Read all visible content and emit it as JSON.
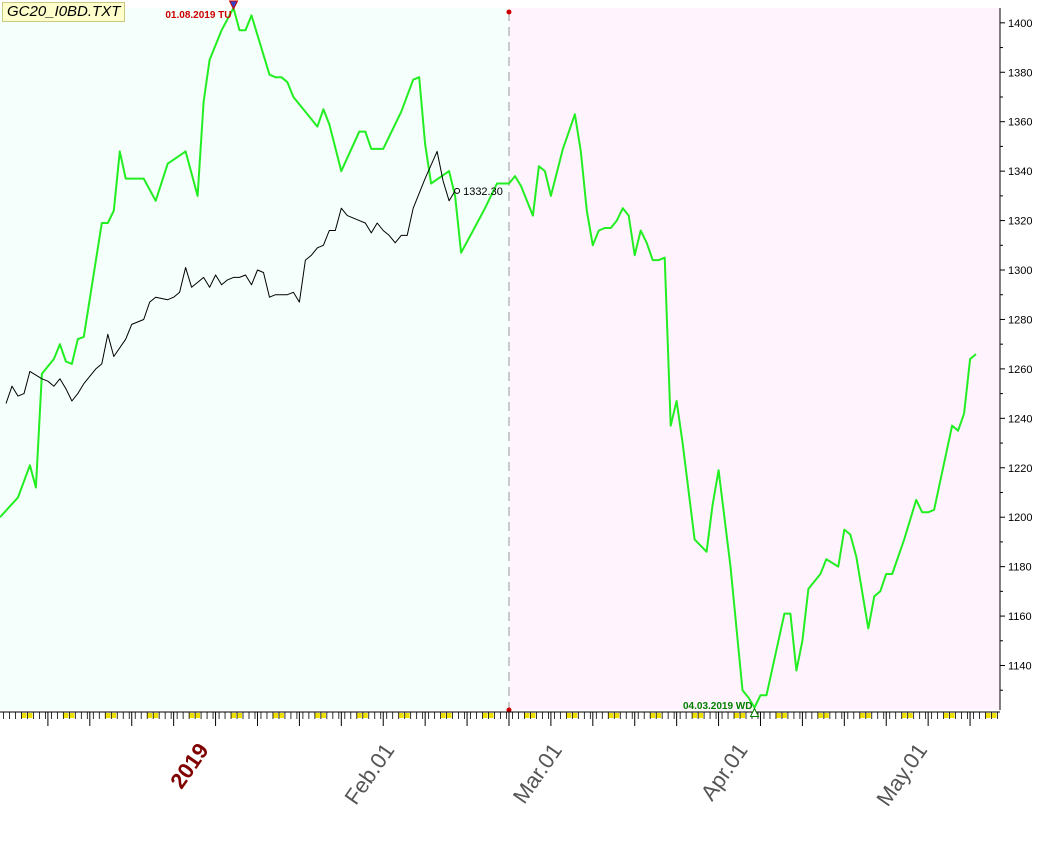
{
  "ticker": "GC20_I0BD.TXT",
  "colors": {
    "past_bg": "#f5fffb",
    "future_bg": "#fff3fd",
    "forecast_line": "#22ee22",
    "price_line": "#000000",
    "high_label": "#cc0000",
    "low_label": "#008000",
    "axis_tick_yellow": "#f0e000"
  },
  "annotations": {
    "high_label": "01.08.2019 TU",
    "low_label": "04.03.2019 WD",
    "last_price_label": "1332.30"
  },
  "chart_data": {
    "type": "line",
    "title": "",
    "x_tick_labels": [
      "2019",
      "Feb.01",
      "Mar.01",
      "Apr.01",
      "May.01"
    ],
    "y_tick_labels": [
      "1400",
      "1380",
      "1360",
      "1340",
      "1320",
      "1300",
      "1280",
      "1260",
      "1240",
      "1220",
      "1200",
      "1180",
      "1160",
      "1140"
    ],
    "ylim": [
      1122,
      1406
    ],
    "x_domain_days": [
      -34,
      133
    ],
    "split_day": 51,
    "grid": false,
    "series": [
      {
        "role": "forecast",
        "points": [
          [
            -34,
            1200
          ],
          [
            -31,
            1208
          ],
          [
            -29,
            1221
          ],
          [
            -28,
            1212
          ],
          [
            -27,
            1258
          ],
          [
            -25,
            1264
          ],
          [
            -24,
            1270
          ],
          [
            -23,
            1263
          ],
          [
            -22,
            1262
          ],
          [
            -21,
            1272
          ],
          [
            -20,
            1273
          ],
          [
            -17,
            1319
          ],
          [
            -16,
            1319
          ],
          [
            -15,
            1324
          ],
          [
            -14,
            1348
          ],
          [
            -13,
            1337
          ],
          [
            -11,
            1337
          ],
          [
            -10,
            1337
          ],
          [
            -8,
            1328
          ],
          [
            -6,
            1343
          ],
          [
            -3,
            1348
          ],
          [
            -1,
            1330
          ],
          [
            0,
            1368
          ],
          [
            1,
            1385
          ],
          [
            3,
            1397
          ],
          [
            5,
            1406
          ],
          [
            6,
            1397
          ],
          [
            7,
            1397
          ],
          [
            8,
            1403
          ],
          [
            11,
            1379
          ],
          [
            12,
            1378
          ],
          [
            13,
            1378
          ],
          [
            14,
            1376
          ],
          [
            15,
            1370
          ],
          [
            17,
            1364
          ],
          [
            19,
            1358
          ],
          [
            20,
            1365
          ],
          [
            21,
            1359
          ],
          [
            23,
            1340
          ],
          [
            26,
            1356
          ],
          [
            27,
            1356
          ],
          [
            28,
            1349
          ],
          [
            29,
            1349
          ],
          [
            30,
            1349
          ],
          [
            33,
            1364
          ],
          [
            35,
            1377
          ],
          [
            36,
            1378
          ],
          [
            37,
            1351
          ],
          [
            38,
            1335
          ],
          [
            41,
            1340
          ],
          [
            42,
            1330
          ],
          [
            43,
            1307
          ],
          [
            45,
            1316
          ],
          [
            47,
            1325
          ],
          [
            49,
            1335
          ],
          [
            50,
            1335
          ],
          [
            51,
            1335
          ],
          [
            52,
            1338
          ],
          [
            53,
            1334
          ],
          [
            55,
            1322
          ],
          [
            56,
            1342
          ],
          [
            57,
            1340
          ],
          [
            58,
            1330
          ],
          [
            60,
            1349
          ],
          [
            62,
            1363
          ],
          [
            63,
            1348
          ],
          [
            64,
            1324
          ],
          [
            65,
            1310
          ],
          [
            66,
            1316
          ],
          [
            67,
            1317
          ],
          [
            68,
            1317
          ],
          [
            69,
            1320
          ],
          [
            70,
            1325
          ],
          [
            71,
            1322
          ],
          [
            72,
            1306
          ],
          [
            73,
            1316
          ],
          [
            74,
            1311
          ],
          [
            75,
            1304
          ],
          [
            76,
            1304
          ],
          [
            77,
            1305
          ],
          [
            78,
            1237
          ],
          [
            79,
            1247
          ],
          [
            80,
            1230
          ],
          [
            82,
            1191
          ],
          [
            84,
            1186
          ],
          [
            85,
            1205
          ],
          [
            86,
            1219
          ],
          [
            88,
            1180
          ],
          [
            90,
            1130
          ],
          [
            91,
            1127
          ],
          [
            92,
            1123
          ],
          [
            93,
            1128
          ],
          [
            94,
            1128
          ],
          [
            97,
            1161
          ],
          [
            98,
            1161
          ],
          [
            99,
            1138
          ],
          [
            100,
            1150
          ],
          [
            101,
            1171
          ],
          [
            103,
            1177
          ],
          [
            104,
            1183
          ],
          [
            106,
            1180
          ],
          [
            107,
            1195
          ],
          [
            108,
            1193
          ],
          [
            109,
            1184
          ],
          [
            111,
            1155
          ],
          [
            112,
            1168
          ],
          [
            113,
            1170
          ],
          [
            114,
            1177
          ],
          [
            115,
            1177
          ],
          [
            117,
            1191
          ],
          [
            119,
            1207
          ],
          [
            120,
            1202
          ],
          [
            121,
            1202
          ],
          [
            122,
            1203
          ],
          [
            125,
            1237
          ],
          [
            126,
            1235
          ],
          [
            127,
            1242
          ],
          [
            128,
            1264
          ],
          [
            129,
            1266
          ]
        ]
      },
      {
        "role": "price",
        "points": [
          [
            -33,
            1246
          ],
          [
            -32,
            1253
          ],
          [
            -31,
            1249
          ],
          [
            -30,
            1250
          ],
          [
            -29,
            1259
          ],
          [
            -27,
            1256
          ],
          [
            -26,
            1255
          ],
          [
            -25,
            1253
          ],
          [
            -24,
            1256
          ],
          [
            -23,
            1252
          ],
          [
            -22,
            1247
          ],
          [
            -21,
            1250
          ],
          [
            -20,
            1254
          ],
          [
            -19,
            1257
          ],
          [
            -18,
            1260
          ],
          [
            -17,
            1262
          ],
          [
            -16,
            1274
          ],
          [
            -15,
            1265
          ],
          [
            -13,
            1272
          ],
          [
            -12,
            1278
          ],
          [
            -10,
            1280
          ],
          [
            -9,
            1287
          ],
          [
            -8,
            1289
          ],
          [
            -6,
            1288
          ],
          [
            -5,
            1289
          ],
          [
            -4,
            1291
          ],
          [
            -3,
            1301
          ],
          [
            -2,
            1293
          ],
          [
            -1,
            1295
          ],
          [
            0,
            1297
          ],
          [
            1,
            1293
          ],
          [
            2,
            1298
          ],
          [
            3,
            1294
          ],
          [
            4,
            1296
          ],
          [
            5,
            1297
          ],
          [
            6,
            1297
          ],
          [
            7,
            1298
          ],
          [
            8,
            1294
          ],
          [
            9,
            1300
          ],
          [
            10,
            1299
          ],
          [
            11,
            1289
          ],
          [
            12,
            1290
          ],
          [
            14,
            1290
          ],
          [
            15,
            1291
          ],
          [
            16,
            1287
          ],
          [
            17,
            1304
          ],
          [
            18,
            1306
          ],
          [
            19,
            1309
          ],
          [
            20,
            1310
          ],
          [
            21,
            1316
          ],
          [
            22,
            1316
          ],
          [
            23,
            1325
          ],
          [
            24,
            1322
          ],
          [
            26,
            1320
          ],
          [
            27,
            1319
          ],
          [
            28,
            1315
          ],
          [
            29,
            1319
          ],
          [
            30,
            1316
          ],
          [
            31,
            1314
          ],
          [
            32,
            1311
          ],
          [
            33,
            1314
          ],
          [
            34,
            1314
          ],
          [
            35,
            1325
          ],
          [
            37,
            1337
          ],
          [
            39,
            1348
          ],
          [
            40,
            1336
          ],
          [
            41,
            1328
          ],
          [
            42,
            1332
          ]
        ]
      }
    ]
  }
}
